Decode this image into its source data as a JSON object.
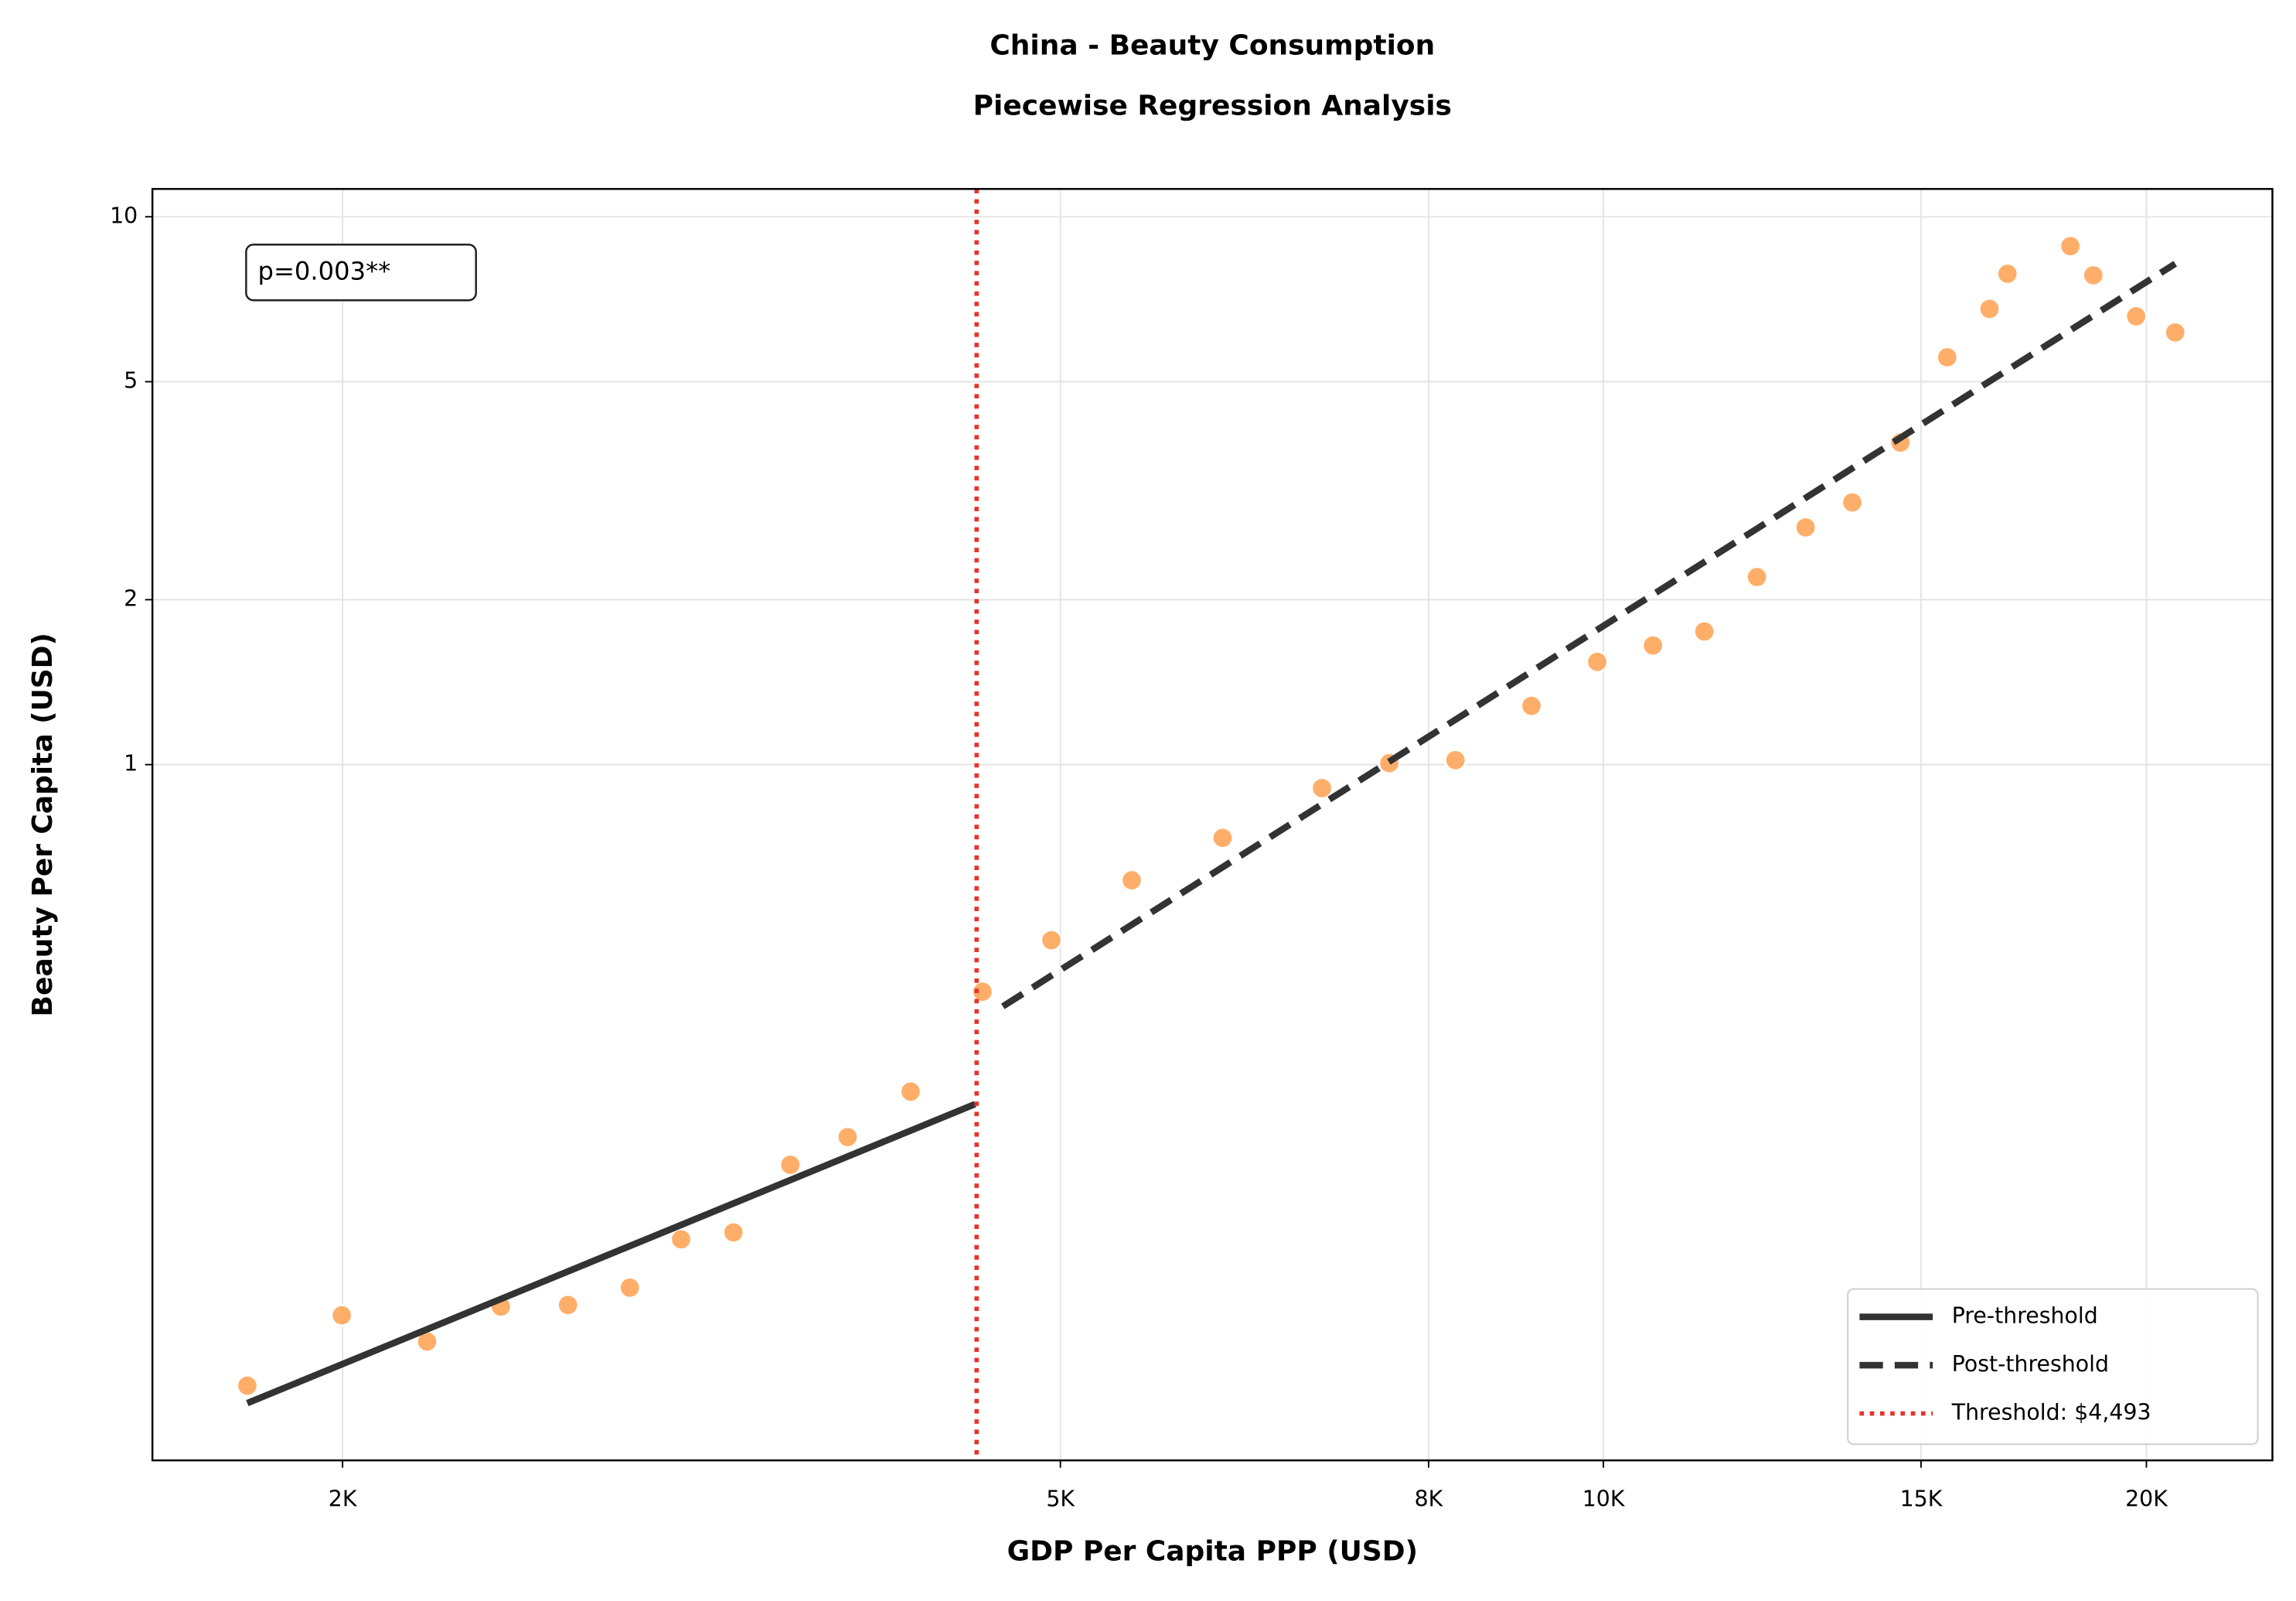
{
  "chart_data": {
    "type": "scatter",
    "title": [
      "China - Beauty Consumption",
      "Piecewise Regression Analysis"
    ],
    "x_label": "GDP Per Capita PPP (USD)",
    "y_label": "Beauty Per Capita (USD)",
    "annotation": "p=0.003**",
    "xscale": "log",
    "yscale": "log",
    "grid": true,
    "legend_loc": "lower right",
    "color": "#ffa04f",
    "x": [
      1771,
      1998,
      2228,
      2448,
      2667,
      2886,
      3081,
      3294,
      3542,
      3811,
      4130,
      4527,
      4943,
      5477,
      6150,
      6982,
      7609,
      8279,
      9123,
      9922,
      10653,
      11376,
      12165,
      12945,
      13740,
      14610,
      15510,
      16370,
      16750,
      18150,
      18690,
      19740,
      20750
    ],
    "values": [
      0.0735,
      0.0988,
      0.0885,
      0.1025,
      0.1032,
      0.111,
      0.136,
      0.14,
      0.186,
      0.209,
      0.253,
      0.385,
      0.478,
      0.615,
      0.735,
      0.906,
      1.006,
      1.019,
      1.28,
      1.54,
      1.65,
      1.75,
      2.2,
      2.71,
      3.01,
      3.87,
      5.54,
      6.79,
      7.87,
      8.84,
      7.82,
      6.58,
      6.15
    ],
    "lines": [
      {
        "name": "Pre-threshold",
        "color": "#333333",
        "style": "solid",
        "x": [
          1771,
          4484
        ],
        "values": [
          0.0683,
          0.24
        ]
      },
      {
        "name": "Post-threshold",
        "color": "#333333",
        "style": "dashed",
        "x": [
          4646,
          20750
        ],
        "values": [
          0.362,
          8.21
        ]
      }
    ],
    "threshold": {
      "value": 4493,
      "label": "Threshold: $4,493",
      "color": "#e8322d"
    },
    "xlim": [
      1569,
      23490
    ],
    "ylim": [
      0.0537,
      11.24
    ],
    "xticks": [
      {
        "value": 2000,
        "label": "2K"
      },
      {
        "value": 5000,
        "label": "5K"
      },
      {
        "value": 8000,
        "label": "8K"
      },
      {
        "value": 10000,
        "label": "10K"
      },
      {
        "value": 15000,
        "label": "15K"
      },
      {
        "value": 20000,
        "label": "20K"
      }
    ],
    "yticks": [
      1,
      2,
      5,
      10
    ]
  }
}
